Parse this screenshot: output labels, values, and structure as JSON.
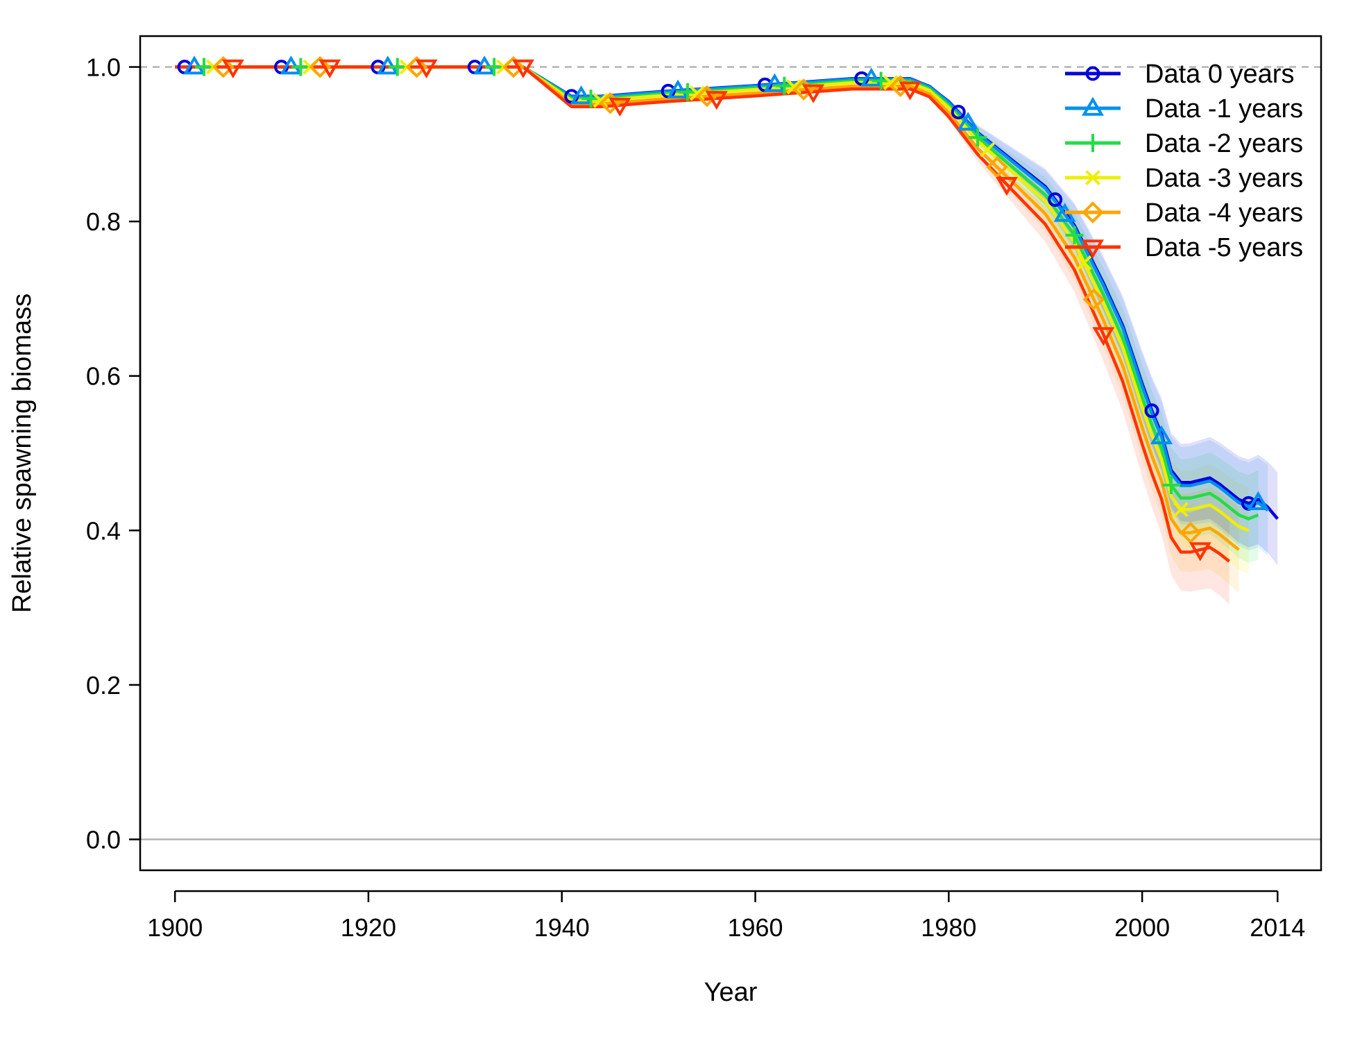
{
  "chart_data": {
    "type": "line",
    "title": "",
    "xlabel": "Year",
    "ylabel": "Relative spawning biomass",
    "xlim": [
      1896.4,
      2018.5
    ],
    "ylim": [
      -0.04,
      1.04
    ],
    "x_ticks": [
      {
        "value": 1900,
        "label": "1900"
      },
      {
        "value": 1920,
        "label": "1920"
      },
      {
        "value": 1940,
        "label": "1940"
      },
      {
        "value": 1960,
        "label": "1960"
      },
      {
        "value": 1980,
        "label": "1980"
      },
      {
        "value": 2000,
        "label": "2000"
      },
      {
        "value": 2014,
        "label": "2014"
      }
    ],
    "y_ticks": [
      {
        "value": 0.0,
        "label": "0.0"
      },
      {
        "value": 0.2,
        "label": "0.2"
      },
      {
        "value": 0.4,
        "label": "0.4"
      },
      {
        "value": 0.6,
        "label": "0.6"
      },
      {
        "value": 0.8,
        "label": "0.8"
      },
      {
        "value": 1.0,
        "label": "1.0"
      }
    ],
    "reference_lines": [
      {
        "y": 1.0,
        "style": "dashed",
        "color": "#b3b3b3"
      },
      {
        "y": 0.0,
        "style": "solid",
        "color": "#b3b3b3"
      }
    ],
    "grid": false,
    "legend_position": "top-right",
    "base_curve": {
      "x": [
        1900,
        1936,
        1938,
        1941,
        1944,
        1950,
        1960,
        1970,
        1976,
        1978,
        1980,
        1983,
        1986,
        1988,
        1990,
        1993,
        1996,
        1998,
        2000,
        2001,
        2002,
        2003,
        2004,
        2005,
        2006,
        2007,
        2008,
        2009,
        2010,
        2011,
        2012,
        2013,
        2014
      ],
      "y": [
        1.0,
        1.0,
        0.985,
        0.962,
        0.962,
        0.968,
        0.976,
        0.985,
        0.985,
        0.975,
        0.955,
        0.915,
        0.885,
        0.865,
        0.845,
        0.795,
        0.72,
        0.665,
        0.59,
        0.555,
        0.525,
        0.478,
        0.462,
        0.462,
        0.465,
        0.468,
        0.46,
        0.45,
        0.44,
        0.435,
        0.44,
        0.43,
        0.415
      ]
    },
    "series": [
      {
        "name": "Data 0 years",
        "color": "#0000dd",
        "marker": "circle",
        "end_year": 2014,
        "offset": 0.0,
        "marker_x": [
          1901,
          1911,
          1921,
          1931,
          1941,
          1951,
          1961,
          1971,
          1981,
          1991,
          2001,
          2011
        ]
      },
      {
        "name": "Data -1 years",
        "color": "#0090ee",
        "marker": "triangle-up",
        "end_year": 2013,
        "offset": -0.004,
        "marker_x": [
          1902,
          1912,
          1922,
          1932,
          1942,
          1952,
          1962,
          1972,
          1982,
          1992,
          2002,
          2012
        ]
      },
      {
        "name": "Data -2 years",
        "color": "#22dd44",
        "marker": "plus",
        "end_year": 2012,
        "offset": -0.02,
        "marker_x": [
          1903,
          1913,
          1923,
          1933,
          1943,
          1953,
          1963,
          1973,
          1983,
          1993,
          2003
        ]
      },
      {
        "name": "Data -3 years",
        "color": "#eeee00",
        "marker": "cross",
        "end_year": 2011,
        "offset": -0.035,
        "marker_x": [
          1904,
          1914,
          1924,
          1934,
          1944,
          1954,
          1964,
          1974,
          1984,
          1994,
          2004
        ]
      },
      {
        "name": "Data -4 years",
        "color": "#ffa500",
        "marker": "diamond",
        "end_year": 2010,
        "offset": -0.065,
        "marker_x": [
          1905,
          1915,
          1925,
          1935,
          1945,
          1955,
          1965,
          1975,
          1985,
          1995,
          2005
        ]
      },
      {
        "name": "Data -5 years",
        "color": "#ff3300",
        "marker": "triangle-down",
        "end_year": 2009,
        "offset": -0.09,
        "marker_x": [
          1906,
          1916,
          1926,
          1936,
          1946,
          1956,
          1966,
          1976,
          1986,
          1996,
          2006
        ]
      }
    ]
  }
}
